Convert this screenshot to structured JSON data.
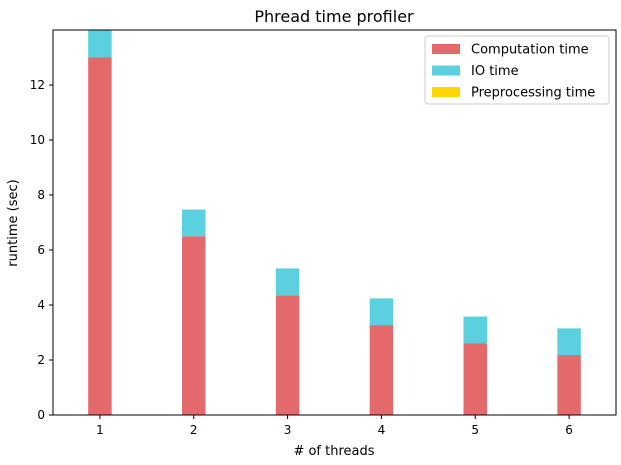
{
  "chart_data": {
    "type": "bar",
    "stacked": true,
    "title": "Phread time profiler",
    "xlabel": "# of threads",
    "ylabel": "runtime (sec)",
    "categories": [
      "1",
      "2",
      "3",
      "4",
      "5",
      "6"
    ],
    "x_ticks": [
      "1",
      "2",
      "3",
      "4",
      "5",
      "6"
    ],
    "y_ticks": [
      "0",
      "2",
      "4",
      "6",
      "8",
      "10",
      "12"
    ],
    "ylim": [
      0,
      14.0
    ],
    "legend_position": "top-right",
    "series": [
      {
        "name": "Computation time",
        "color": "#e3696b",
        "values": [
          13.0,
          6.5,
          4.35,
          3.27,
          2.6,
          2.18
        ]
      },
      {
        "name": "IO time",
        "color": "#5bd0de",
        "values": [
          1.0,
          0.97,
          0.98,
          0.97,
          0.98,
          0.97
        ]
      },
      {
        "name": "Preprocessing time",
        "color": "#ffd700",
        "values": [
          0,
          0,
          0,
          0,
          0,
          0
        ]
      }
    ]
  }
}
